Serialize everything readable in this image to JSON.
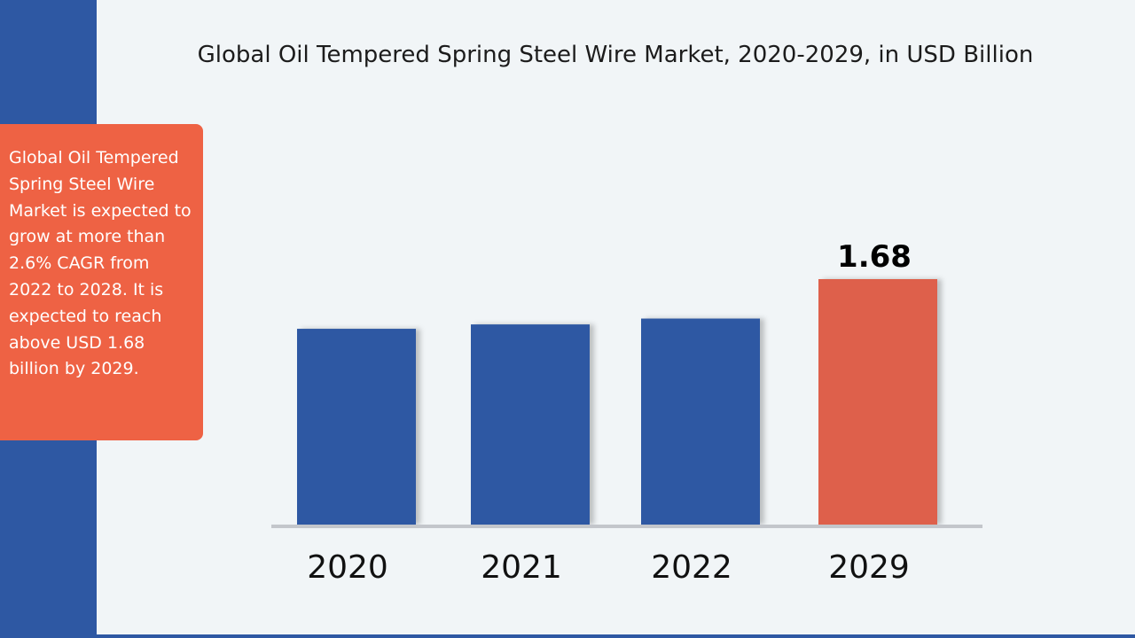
{
  "chart_data": {
    "type": "bar",
    "title": "Global Oil Tempered Spring Steel Wire Market, 2020-2029, in USD Billion",
    "categories": [
      "2020",
      "2021",
      "2022",
      "2029"
    ],
    "values": [
      1.34,
      1.37,
      1.41,
      1.68
    ],
    "data_labels": [
      "",
      "",
      "",
      "1.68"
    ],
    "bar_colors": [
      "#2e58a3",
      "#2e58a3",
      "#2e58a3",
      "#de614b"
    ],
    "xlabel": "",
    "ylabel": "",
    "ylim": [
      0,
      1.68
    ],
    "grid": false,
    "legend": "none"
  },
  "callout": {
    "text": "Global Oil Tempered Spring Steel Wire Market is expected to grow at more than 2.6% CAGR from 2022 to 2028. It is expected to reach above USD 1.68 billion by 2029."
  },
  "colors": {
    "accent_blue": "#2e58a3",
    "accent_orange": "#ee6244",
    "background": "#f1f5f7",
    "axis_line": "#c3c6cb"
  }
}
